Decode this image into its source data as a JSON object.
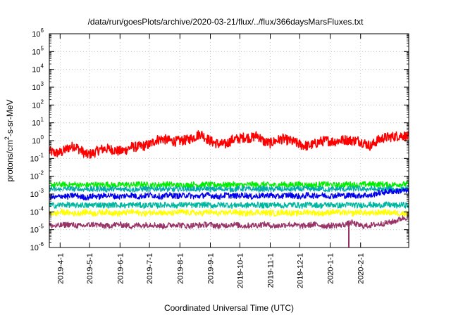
{
  "chart_data": {
    "type": "line",
    "title": "/data/run/goesPlots/archive/2020-03-21/flux/../flux/366daysMarsFluxes.txt",
    "xlabel": "Coordinated Universal Time (UTC)",
    "ylabel_parts": [
      "protons/cm",
      "2",
      "-s-sr-MeV"
    ],
    "x_range": [
      "2019-03-21",
      "2020-03-21"
    ],
    "x_ticks": [
      "2019-4-1",
      "2019-5-1",
      "2019-6-1",
      "2019-7-1",
      "2019-8-1",
      "2019-9-1",
      "2019-10-1",
      "2019-11-1",
      "2019-12-1",
      "2020-1-1",
      "2020-2-1"
    ],
    "y_scale": "log",
    "ylim": [
      1e-06,
      1000000.0
    ],
    "y_ticks": [
      {
        "base": "10",
        "exp": "-6"
      },
      {
        "base": "10",
        "exp": "-5"
      },
      {
        "base": "10",
        "exp": "-4"
      },
      {
        "base": "10",
        "exp": "-3"
      },
      {
        "base": "10",
        "exp": "-2"
      },
      {
        "base": "10",
        "exp": "-1"
      },
      {
        "base": "10",
        "exp": "0"
      },
      {
        "base": "10",
        "exp": "1"
      },
      {
        "base": "10",
        "exp": "2"
      },
      {
        "base": "10",
        "exp": "3"
      },
      {
        "base": "10",
        "exp": "4"
      },
      {
        "base": "10",
        "exp": "5"
      },
      {
        "base": "10",
        "exp": "6"
      }
    ],
    "grid": true,
    "series": [
      {
        "color": "#ff0000",
        "log10_flux": [
          -0.6,
          -0.7,
          -0.65,
          -0.4,
          -0.3,
          -0.55,
          -0.8,
          -0.7,
          -0.5,
          -0.45,
          -0.5,
          -0.6,
          -0.55,
          -0.35,
          -0.35,
          -0.3,
          -0.2,
          0.05,
          0.1,
          0.0,
          -0.05,
          0.0,
          0.05,
          0.2,
          0.4,
          0.1,
          -0.1,
          -0.2,
          -0.2,
          0.05,
          0.1,
          0.2,
          0.15,
          0.3,
          -0.05,
          -0.15,
          0.0,
          0.1,
          0.0,
          -0.1,
          -0.25,
          -0.3,
          -0.2,
          -0.05,
          0.0,
          -0.05,
          0.0,
          0.05,
          0.0,
          0.0,
          -0.15,
          -0.3,
          0.0,
          0.15,
          0.2,
          0.25,
          0.3,
          0.2
        ]
      },
      {
        "color": "#00ee00",
        "log10_flux": [
          -2.45,
          -2.5,
          -2.45,
          -2.5,
          -2.45,
          -2.5,
          -2.5,
          -2.45,
          -2.5,
          -2.45,
          -2.5,
          -2.5,
          -2.45,
          -2.5,
          -2.45,
          -2.45,
          -2.5,
          -2.5,
          -2.45,
          -2.45,
          -2.5,
          -2.5,
          -2.5,
          -2.45,
          -2.5,
          -2.45,
          -2.5,
          -2.45,
          -2.5,
          -2.45,
          -2.5,
          -2.5,
          -2.45,
          -2.5,
          -2.45,
          -2.5,
          -2.5,
          -2.45,
          -2.5,
          -2.45,
          -2.45,
          -2.5,
          -2.5,
          -2.45,
          -2.45,
          -2.5,
          -2.5,
          -2.45,
          -2.45,
          -2.5,
          -2.45,
          -2.45,
          -2.45,
          -2.45,
          -2.5,
          -2.45,
          -2.45,
          -2.45
        ]
      },
      {
        "color": "#00aaaa",
        "log10_flux": [
          -2.7,
          -2.75,
          -2.75,
          -2.7,
          -2.75,
          -2.75,
          -2.7,
          -2.75,
          -2.7,
          -2.75,
          -2.7,
          -2.75,
          -2.7,
          -2.75,
          -2.75,
          -2.7,
          -2.75,
          -2.7,
          -2.7,
          -2.75,
          -2.75,
          -2.7,
          -2.75,
          -2.7,
          -2.75,
          -2.7,
          -2.75,
          -2.7,
          -2.75,
          -2.75,
          -2.7,
          -2.7,
          -2.75,
          -2.75,
          -2.7,
          -2.75,
          -2.7,
          -2.75,
          -2.75,
          -2.7,
          -2.75,
          -2.7,
          -2.75,
          -2.7,
          -2.75,
          -2.75,
          -2.7,
          -2.75,
          -2.7,
          -2.7,
          -2.75,
          -2.7,
          -2.75,
          -2.75,
          -2.7,
          -2.75,
          -2.75,
          -2.7
        ]
      },
      {
        "color": "#ffffff",
        "log10_flux": [
          -2.95,
          -3.0,
          -2.95,
          -2.95,
          -3.0,
          -2.95,
          -3.0,
          -3.0,
          -2.95,
          -3.0,
          -2.95,
          -2.95,
          -3.0,
          -3.0,
          -2.95,
          -2.95,
          -3.0,
          -2.95,
          -3.0,
          -2.95,
          -3.0,
          -3.0,
          -2.95,
          -3.0,
          -2.95,
          -2.95,
          -3.0,
          -3.0,
          -2.95,
          -3.0,
          -2.95,
          -3.0,
          -2.95,
          -2.95,
          -3.0,
          -3.0,
          -2.95,
          -2.95,
          -3.0,
          -2.95,
          -3.0,
          -3.0,
          -2.95,
          -2.95,
          -3.0,
          -2.95,
          -3.0,
          -2.95,
          -3.0,
          -3.0,
          -2.95,
          -2.95,
          -3.0,
          -2.95,
          -3.0,
          -2.95,
          -2.95,
          -3.0
        ]
      },
      {
        "color": "#0000ee",
        "log10_flux": [
          -3.15,
          -3.2,
          -3.1,
          -3.15,
          -3.05,
          -3.15,
          -3.2,
          -3.1,
          -3.15,
          -3.05,
          -3.1,
          -3.15,
          -3.1,
          -3.05,
          -3.15,
          -3.1,
          -3.05,
          -3.1,
          -3.15,
          -3.05,
          -3.1,
          -3.1,
          -3.05,
          -3.15,
          -3.1,
          -3.05,
          -3.1,
          -3.15,
          -3.05,
          -3.1,
          -3.1,
          -3.05,
          -3.15,
          -3.1,
          -3.1,
          -3.05,
          -3.15,
          -3.1,
          -3.05,
          -3.1,
          -3.15,
          -3.05,
          -3.1,
          -3.05,
          -3.1,
          -3.1,
          -3.05,
          -3.1,
          -3.05,
          -3.1,
          -3.05,
          -3.1,
          -2.95,
          -2.9,
          -2.85,
          -2.85,
          -2.8,
          -2.85
        ]
      },
      {
        "color": "#00b8a0",
        "log10_flux": [
          -3.6,
          -3.65,
          -3.6,
          -3.6,
          -3.65,
          -3.6,
          -3.65,
          -3.6,
          -3.6,
          -3.65,
          -3.6,
          -3.6,
          -3.65,
          -3.6,
          -3.6,
          -3.65,
          -3.6,
          -3.65,
          -3.6,
          -3.6,
          -3.65,
          -3.6,
          -3.6,
          -3.65,
          -3.6,
          -3.6,
          -3.65,
          -3.6,
          -3.6,
          -3.65,
          -3.6,
          -3.65,
          -3.6,
          -3.6,
          -3.65,
          -3.6,
          -3.6,
          -3.65,
          -3.6,
          -3.6,
          -3.65,
          -3.6,
          -3.6,
          -3.65,
          -3.6,
          -3.6,
          -3.65,
          -3.6,
          -3.6,
          -3.65,
          -3.6,
          -3.6,
          -3.65,
          -3.6,
          -3.6,
          -3.65,
          -3.6,
          -3.65
        ]
      },
      {
        "color": "#ffff00",
        "log10_flux": [
          -4.05,
          -4.1,
          -4.0,
          -4.05,
          -4.1,
          -4.05,
          -4.0,
          -4.1,
          -4.05,
          -4.0,
          -4.05,
          -4.1,
          -4.05,
          -4.0,
          -4.05,
          -4.1,
          -4.05,
          -4.0,
          -4.05,
          -4.1,
          -4.05,
          -4.0,
          -4.05,
          -4.05,
          -4.1,
          -4.0,
          -4.05,
          -4.1,
          -4.05,
          -4.0,
          -4.05,
          -4.1,
          -4.05,
          -4.0,
          -4.05,
          -4.05,
          -4.1,
          -4.0,
          -4.05,
          -4.1,
          -4.05,
          -4.0,
          -4.05,
          -4.1,
          -4.05,
          -4.0,
          -4.05,
          -4.05,
          -4.1,
          -4.0,
          -4.05,
          -4.1,
          -4.05,
          -4.0,
          -4.05,
          -4.05,
          -4.1,
          -4.05
        ]
      },
      {
        "color": "#993366",
        "log10_flux": [
          -4.75,
          -4.8,
          -4.75,
          -4.7,
          -4.75,
          -4.8,
          -4.75,
          -4.7,
          -4.75,
          -4.8,
          -4.75,
          -4.7,
          -4.75,
          -4.8,
          -4.75,
          -4.75,
          -4.7,
          -4.75,
          -4.8,
          -4.75,
          -4.7,
          -4.75,
          -4.8,
          -4.75,
          -4.75,
          -4.7,
          -4.75,
          -4.8,
          -4.75,
          -4.7,
          -4.75,
          -4.8,
          -4.75,
          -4.75,
          -4.7,
          -4.75,
          -4.8,
          -4.75,
          -4.7,
          -4.75,
          -4.8,
          -4.75,
          -4.7,
          -4.75,
          -4.8,
          -4.75,
          -4.75,
          -4.7,
          -4.6,
          -4.75,
          -4.8,
          -4.75,
          -4.7,
          -4.65,
          -4.6,
          -4.5,
          -4.35,
          -4.3
        ]
      }
    ]
  }
}
